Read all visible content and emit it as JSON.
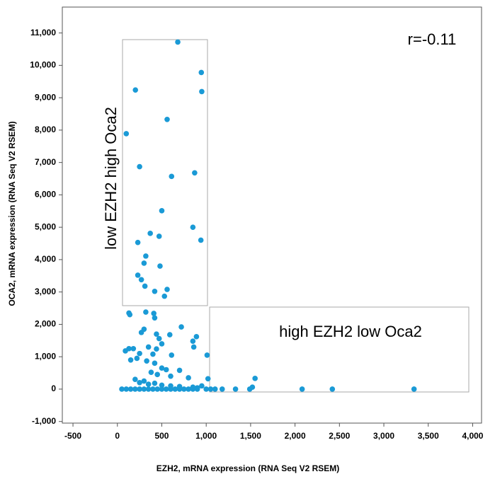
{
  "chart_data": {
    "type": "scatter",
    "x_label": "EZH2, mRNA expression (RNA Seq V2 RSEM)",
    "y_label": "OCA2, mRNA expression (RNA Seq V2 RSEM)",
    "annotations": [
      "r=-0.11",
      "low EZH2 high Oca2",
      "high EZH2 low Oca2"
    ],
    "color": "#1a9ad6",
    "xlim": [
      -620,
      4100
    ],
    "ylim": [
      -1050,
      11800
    ],
    "xticks": [
      -500,
      0,
      500,
      {
        "value": 1000,
        "label": "1,000"
      },
      {
        "value": 1500,
        "label": "1,500"
      },
      {
        "value": 2000,
        "label": "2,000"
      },
      {
        "value": 2500,
        "label": "2,500"
      },
      {
        "value": 3000,
        "label": "3,000"
      },
      {
        "value": 3500,
        "label": "3,500"
      },
      {
        "value": 4000,
        "label": "4,000"
      }
    ],
    "yticks": [
      {
        "value": -1000,
        "label": "-1,000"
      },
      0,
      {
        "value": 1000,
        "label": "1,000"
      },
      {
        "value": 2000,
        "label": "2,000"
      },
      {
        "value": 3000,
        "label": "3,000"
      },
      {
        "value": 4000,
        "label": "4,000"
      },
      {
        "value": 5000,
        "label": "5,000"
      },
      {
        "value": 6000,
        "label": "6,000"
      },
      {
        "value": 7000,
        "label": "7,000"
      },
      {
        "value": 8000,
        "label": "8,000"
      },
      {
        "value": 9000,
        "label": "9,000"
      },
      {
        "value": 10000,
        "label": "10,000"
      },
      {
        "value": 11000,
        "label": "11,000"
      }
    ],
    "x": [
      680,
      945,
      203,
      950,
      560,
      100,
      610,
      870,
      250,
      500,
      850,
      940,
      370,
      470,
      230,
      320,
      300,
      480,
      230,
      270,
      310,
      420,
      530,
      560,
      130,
      140,
      320,
      410,
      420,
      300,
      270,
      440,
      720,
      590,
      470,
      850,
      860,
      890,
      1010,
      130,
      90,
      180,
      350,
      440,
      500,
      250,
      400,
      610,
      150,
      220,
      330,
      420,
      500,
      550,
      700,
      380,
      450,
      600,
      800,
      1020,
      200,
      300,
      250,
      350,
      420,
      500,
      600,
      700,
      850,
      900,
      950,
      50,
      100,
      150,
      200,
      250,
      300,
      350,
      400,
      450,
      500,
      550,
      600,
      650,
      700,
      750,
      800,
      850,
      900,
      1000,
      1050,
      1100,
      1180,
      1330,
      1490,
      1520,
      1550,
      2080,
      2420,
      3340
    ],
    "y": [
      10720,
      9780,
      9240,
      9190,
      8330,
      7890,
      6570,
      6680,
      6870,
      5510,
      5000,
      4600,
      4810,
      4720,
      4530,
      4110,
      3890,
      3800,
      3520,
      3380,
      3180,
      3020,
      2870,
      3080,
      2350,
      2300,
      2380,
      2340,
      2200,
      1850,
      1750,
      1700,
      1920,
      1680,
      1560,
      1480,
      1300,
      1620,
      1050,
      1250,
      1180,
      1250,
      1300,
      1240,
      1400,
      1100,
      1080,
      1050,
      900,
      950,
      870,
      800,
      650,
      600,
      580,
      520,
      450,
      400,
      350,
      320,
      300,
      250,
      200,
      150,
      180,
      120,
      100,
      80,
      60,
      40,
      100,
      0,
      0,
      0,
      0,
      0,
      0,
      0,
      0,
      0,
      0,
      0,
      0,
      0,
      0,
      0,
      0,
      0,
      0,
      0,
      0,
      0,
      0,
      0,
      0,
      60,
      330,
      0,
      0,
      0
    ]
  }
}
